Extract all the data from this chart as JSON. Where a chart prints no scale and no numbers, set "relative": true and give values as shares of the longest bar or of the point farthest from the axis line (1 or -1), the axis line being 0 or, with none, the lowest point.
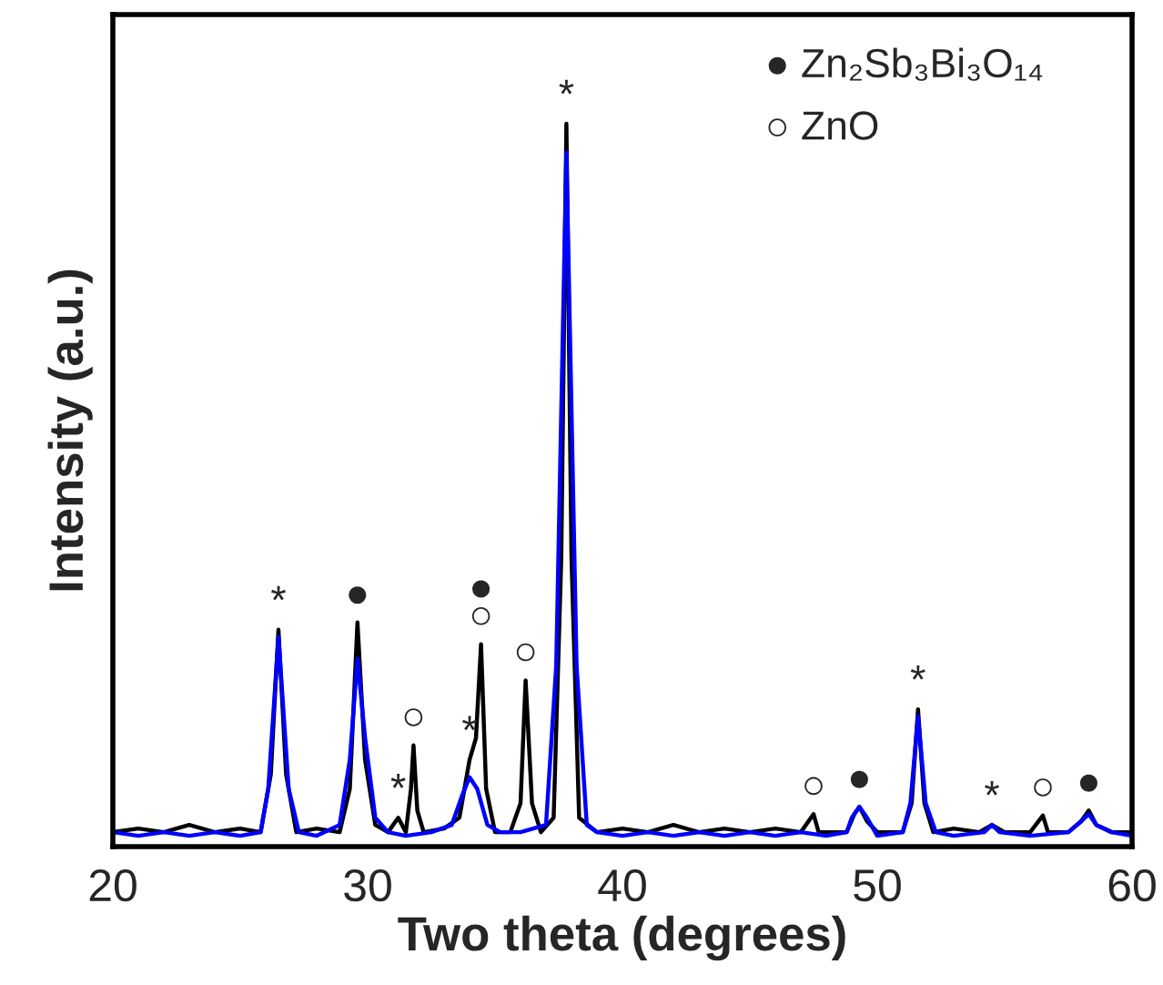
{
  "chart_data": {
    "type": "line",
    "relative": true,
    "xlabel": "Two theta (degrees)",
    "ylabel": "Intensity (a.u.)",
    "xlim": [
      20,
      60
    ],
    "xticks": [
      20,
      30,
      40,
      50,
      60
    ],
    "tick_labels": "x",
    "grid": false,
    "legend": false,
    "marker": "none",
    "line_style": "solid",
    "series": [
      {
        "color": "#000000",
        "x": [
          20,
          21,
          22,
          23,
          24,
          25,
          25.8,
          26.2,
          26.5,
          26.8,
          27.2,
          28,
          28.9,
          29.3,
          29.6,
          29.9,
          30.3,
          30.8,
          31.2,
          31.5,
          31.7,
          31.8,
          31.95,
          32.2,
          33,
          33.6,
          34.0,
          34.25,
          34.45,
          34.65,
          35.0,
          35.6,
          36.0,
          36.2,
          36.45,
          36.8,
          37.3,
          37.6,
          37.8,
          38.0,
          38.3,
          39,
          40,
          41,
          42,
          43,
          44,
          45,
          46,
          47,
          47.5,
          47.7,
          48.8,
          49.1,
          49.3,
          49.6,
          50.0,
          51,
          51.35,
          51.6,
          51.85,
          52.2,
          53,
          54,
          54.5,
          55,
          56,
          56.5,
          56.7,
          57.5,
          58.0,
          58.3,
          58.6,
          59.2,
          60
        ],
        "values": [
          0.02,
          0.025,
          0.02,
          0.03,
          0.02,
          0.025,
          0.02,
          0.1,
          0.3,
          0.1,
          0.02,
          0.025,
          0.02,
          0.08,
          0.31,
          0.12,
          0.03,
          0.02,
          0.04,
          0.02,
          0.08,
          0.14,
          0.05,
          0.02,
          0.025,
          0.04,
          0.12,
          0.15,
          0.28,
          0.08,
          0.02,
          0.02,
          0.06,
          0.23,
          0.06,
          0.02,
          0.04,
          0.4,
          1.0,
          0.4,
          0.04,
          0.02,
          0.025,
          0.02,
          0.03,
          0.02,
          0.025,
          0.02,
          0.025,
          0.02,
          0.045,
          0.02,
          0.02,
          0.045,
          0.055,
          0.035,
          0.02,
          0.02,
          0.06,
          0.19,
          0.06,
          0.02,
          0.025,
          0.02,
          0.03,
          0.02,
          0.02,
          0.043,
          0.02,
          0.02,
          0.035,
          0.05,
          0.03,
          0.02,
          0.02
        ]
      },
      {
        "color": "#0000ff",
        "x": [
          20,
          21,
          22,
          23,
          24,
          25,
          25.8,
          26.1,
          26.5,
          26.9,
          27.3,
          28,
          28.9,
          29.3,
          29.6,
          29.9,
          30.3,
          30.8,
          31.5,
          32.5,
          33.3,
          33.7,
          34.0,
          34.3,
          34.7,
          35.2,
          36,
          37.0,
          37.4,
          37.8,
          38.2,
          38.6,
          39,
          40,
          41,
          42,
          43,
          44,
          45,
          46,
          47,
          48,
          48.8,
          49.0,
          49.3,
          49.6,
          50.0,
          51,
          51.3,
          51.6,
          51.9,
          52.3,
          53,
          54.2,
          54.5,
          54.8,
          56,
          57.5,
          58.0,
          58.3,
          58.6,
          59.2,
          60
        ],
        "values": [
          0.02,
          0.015,
          0.02,
          0.015,
          0.02,
          0.015,
          0.02,
          0.08,
          0.29,
          0.08,
          0.02,
          0.015,
          0.03,
          0.12,
          0.26,
          0.15,
          0.04,
          0.02,
          0.015,
          0.02,
          0.03,
          0.07,
          0.096,
          0.08,
          0.03,
          0.02,
          0.02,
          0.03,
          0.25,
          0.96,
          0.25,
          0.03,
          0.02,
          0.015,
          0.02,
          0.015,
          0.02,
          0.015,
          0.02,
          0.015,
          0.02,
          0.015,
          0.02,
          0.04,
          0.055,
          0.04,
          0.015,
          0.02,
          0.06,
          0.18,
          0.06,
          0.02,
          0.015,
          0.02,
          0.03,
          0.02,
          0.015,
          0.02,
          0.035,
          0.045,
          0.03,
          0.02,
          0.015
        ]
      }
    ],
    "annotations": [
      "● Zn₂Sb₃Bi₃O₁₄",
      "○ ZnO",
      {
        "text": "*",
        "x": 26.5,
        "y": 0.3
      },
      {
        "text": "*",
        "x": 31.2,
        "y": 0.04
      },
      {
        "text": "*",
        "x": 34.0,
        "y": 0.12
      },
      {
        "text": "*",
        "x": 37.8,
        "y": 1.0
      },
      {
        "text": "*",
        "x": 51.6,
        "y": 0.19
      },
      {
        "text": "*",
        "x": 54.5,
        "y": 0.03
      },
      {
        "text": "○",
        "x": 34.45,
        "y": 0.28
      },
      {
        "text": "●",
        "x": 29.6,
        "y": 0.31
      },
      {
        "text": "●",
        "x": 34.45,
        "y": 0.28
      },
      {
        "text": "●",
        "x": 49.3,
        "y": 0.055
      },
      {
        "text": "●",
        "x": 58.3,
        "y": 0.05
      },
      {
        "text": "○",
        "x": 31.8,
        "y": 0.14
      },
      {
        "text": "○",
        "x": 36.2,
        "y": 0.23
      },
      {
        "text": "○",
        "x": 47.5,
        "y": 0.045
      },
      {
        "text": "○",
        "x": 56.5,
        "y": 0.043
      }
    ]
  }
}
